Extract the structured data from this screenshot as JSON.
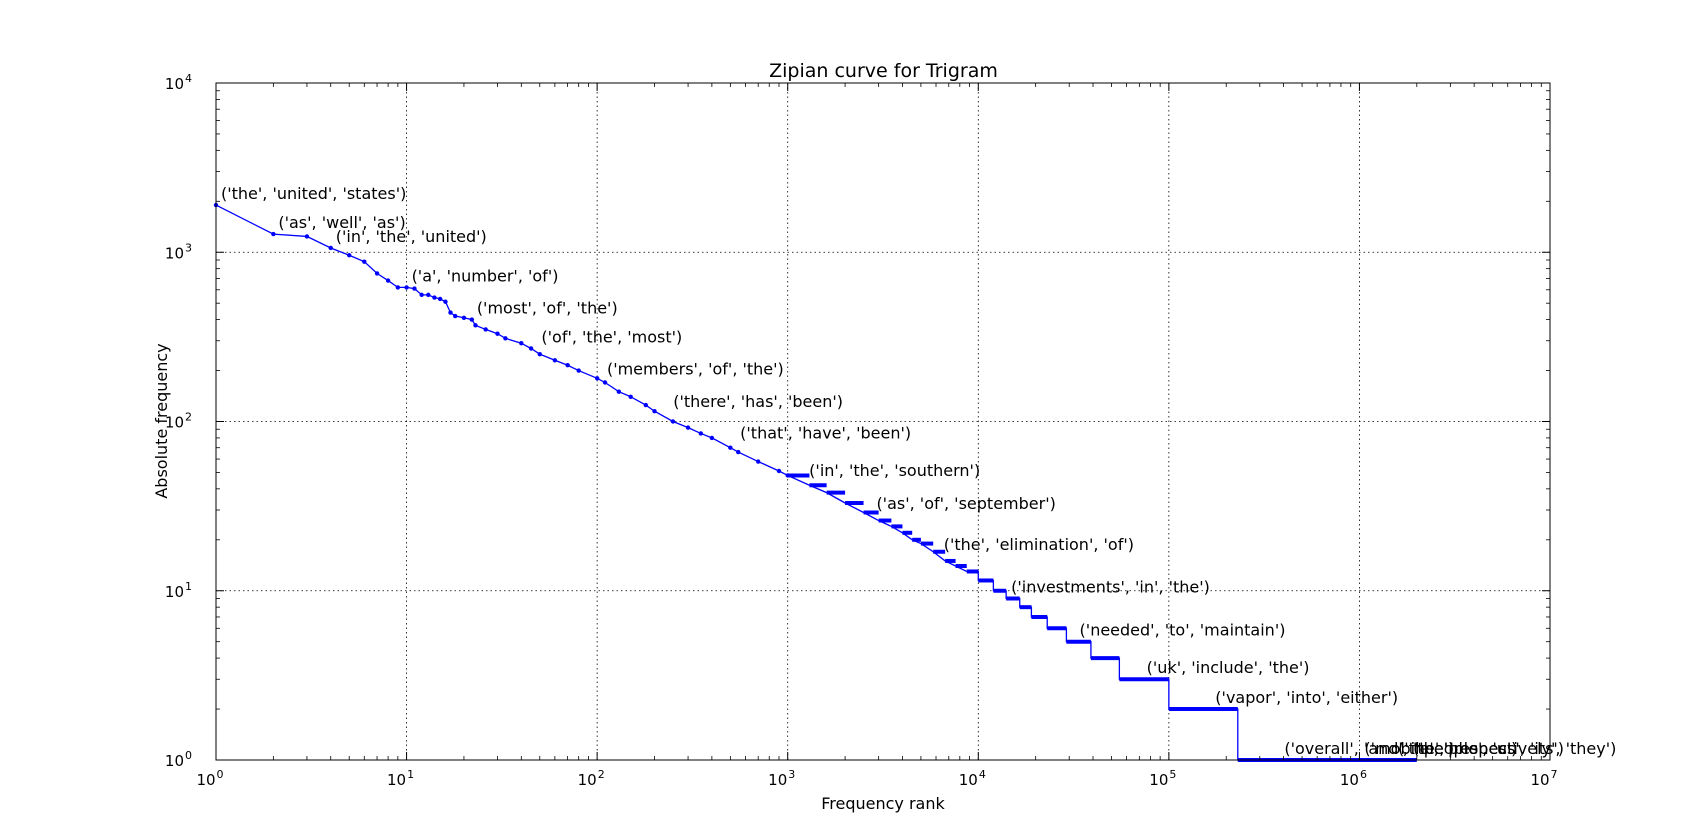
{
  "chart_data": {
    "type": "line",
    "title": "Zipian curve for Trigram",
    "xlabel": "Frequency rank",
    "ylabel": "Absolute frequency",
    "xscale": "log",
    "yscale": "log",
    "xlim": [
      1,
      10000000
    ],
    "ylim": [
      1,
      10000
    ],
    "grid": true,
    "line_color": "#0000ff",
    "x_ticks": [
      {
        "base": "10",
        "exp": "0",
        "value": 1
      },
      {
        "base": "10",
        "exp": "1",
        "value": 10
      },
      {
        "base": "10",
        "exp": "2",
        "value": 100
      },
      {
        "base": "10",
        "exp": "3",
        "value": 1000
      },
      {
        "base": "10",
        "exp": "4",
        "value": 10000
      },
      {
        "base": "10",
        "exp": "5",
        "value": 100000
      },
      {
        "base": "10",
        "exp": "6",
        "value": 1000000
      },
      {
        "base": "10",
        "exp": "7",
        "value": 10000000
      }
    ],
    "y_ticks": [
      {
        "base": "10",
        "exp": "0",
        "value": 1
      },
      {
        "base": "10",
        "exp": "1",
        "value": 10
      },
      {
        "base": "10",
        "exp": "2",
        "value": 100
      },
      {
        "base": "10",
        "exp": "3",
        "value": 1000
      },
      {
        "base": "10",
        "exp": "4",
        "value": 10000
      }
    ],
    "series": [
      {
        "x": [
          1,
          2,
          3,
          4,
          5,
          6,
          7,
          8,
          9,
          10,
          11,
          12,
          13,
          14,
          15,
          16,
          17,
          18,
          20,
          22,
          23,
          26,
          30,
          33,
          40,
          45,
          50,
          60,
          70,
          80,
          100,
          110,
          130,
          150,
          180,
          200,
          250,
          300,
          350,
          400,
          500,
          550,
          700,
          900,
          1000,
          1300,
          1600,
          2000,
          2500,
          3000,
          3500,
          4000,
          4500,
          5000,
          5800,
          6700,
          7600,
          8700,
          10000,
          12000,
          14000,
          16500,
          19000,
          23000,
          29000,
          39000,
          55000,
          100000,
          230000,
          2000000
        ],
        "y": [
          1900,
          1280,
          1240,
          1060,
          960,
          880,
          750,
          680,
          620,
          620,
          610,
          560,
          560,
          540,
          530,
          510,
          440,
          420,
          410,
          400,
          370,
          350,
          330,
          310,
          290,
          270,
          250,
          230,
          215,
          200,
          180,
          170,
          150,
          140,
          125,
          115,
          100,
          92,
          85,
          80,
          70,
          66,
          58,
          51,
          48,
          42,
          38,
          33,
          29,
          26,
          24,
          22,
          20,
          19,
          17,
          15,
          14,
          13,
          11.5,
          10,
          9,
          8,
          7,
          6,
          5,
          4,
          3,
          2,
          1,
          1
        ]
      }
    ],
    "annotations": [
      {
        "text": "('the', 'united', 'states')",
        "x": 1,
        "y": 1900
      },
      {
        "text": "('as', 'well', 'as')",
        "x": 2,
        "y": 1280
      },
      {
        "text": "('in', 'the', 'united')",
        "x": 4,
        "y": 1060
      },
      {
        "text": "('a', 'number', 'of')",
        "x": 10,
        "y": 620
      },
      {
        "text": "('most', 'of', 'the')",
        "x": 22,
        "y": 400
      },
      {
        "text": "('of', 'the', 'most')",
        "x": 48,
        "y": 270
      },
      {
        "text": "('members', 'of', 'the')",
        "x": 106,
        "y": 175
      },
      {
        "text": "('there', 'has', 'been')",
        "x": 236,
        "y": 112
      },
      {
        "text": "('that', 'have', 'been')",
        "x": 530,
        "y": 73
      },
      {
        "text": "('in', 'the', 'southern')",
        "x": 1220,
        "y": 44
      },
      {
        "text": "('as', 'of', 'september')",
        "x": 2750,
        "y": 28
      },
      {
        "text": "('the', 'elimination', 'of')",
        "x": 6200,
        "y": 16
      },
      {
        "text": "('investments', 'in', 'the')",
        "x": 14000,
        "y": 9
      },
      {
        "text": "('needed', 'to', 'maintain')",
        "x": 32000,
        "y": 5
      },
      {
        "text": "('uk', 'include', 'the')",
        "x": 72000,
        "y": 3
      },
      {
        "text": "('vapor', 'into', 'either')",
        "x": 165000,
        "y": 2
      },
      {
        "text": "('overall', 'and', 'the')",
        "x": 380000,
        "y": 1
      },
      {
        "text": "('mobile', 'phones')",
        "x": 1000000,
        "y": 1
      },
      {
        "text": "('the', 'respectively', 'they')",
        "x": 1500000,
        "y": 1
      },
      {
        "text": "('people', 'us', 'its')",
        "x": 1800000,
        "y": 1
      }
    ]
  }
}
